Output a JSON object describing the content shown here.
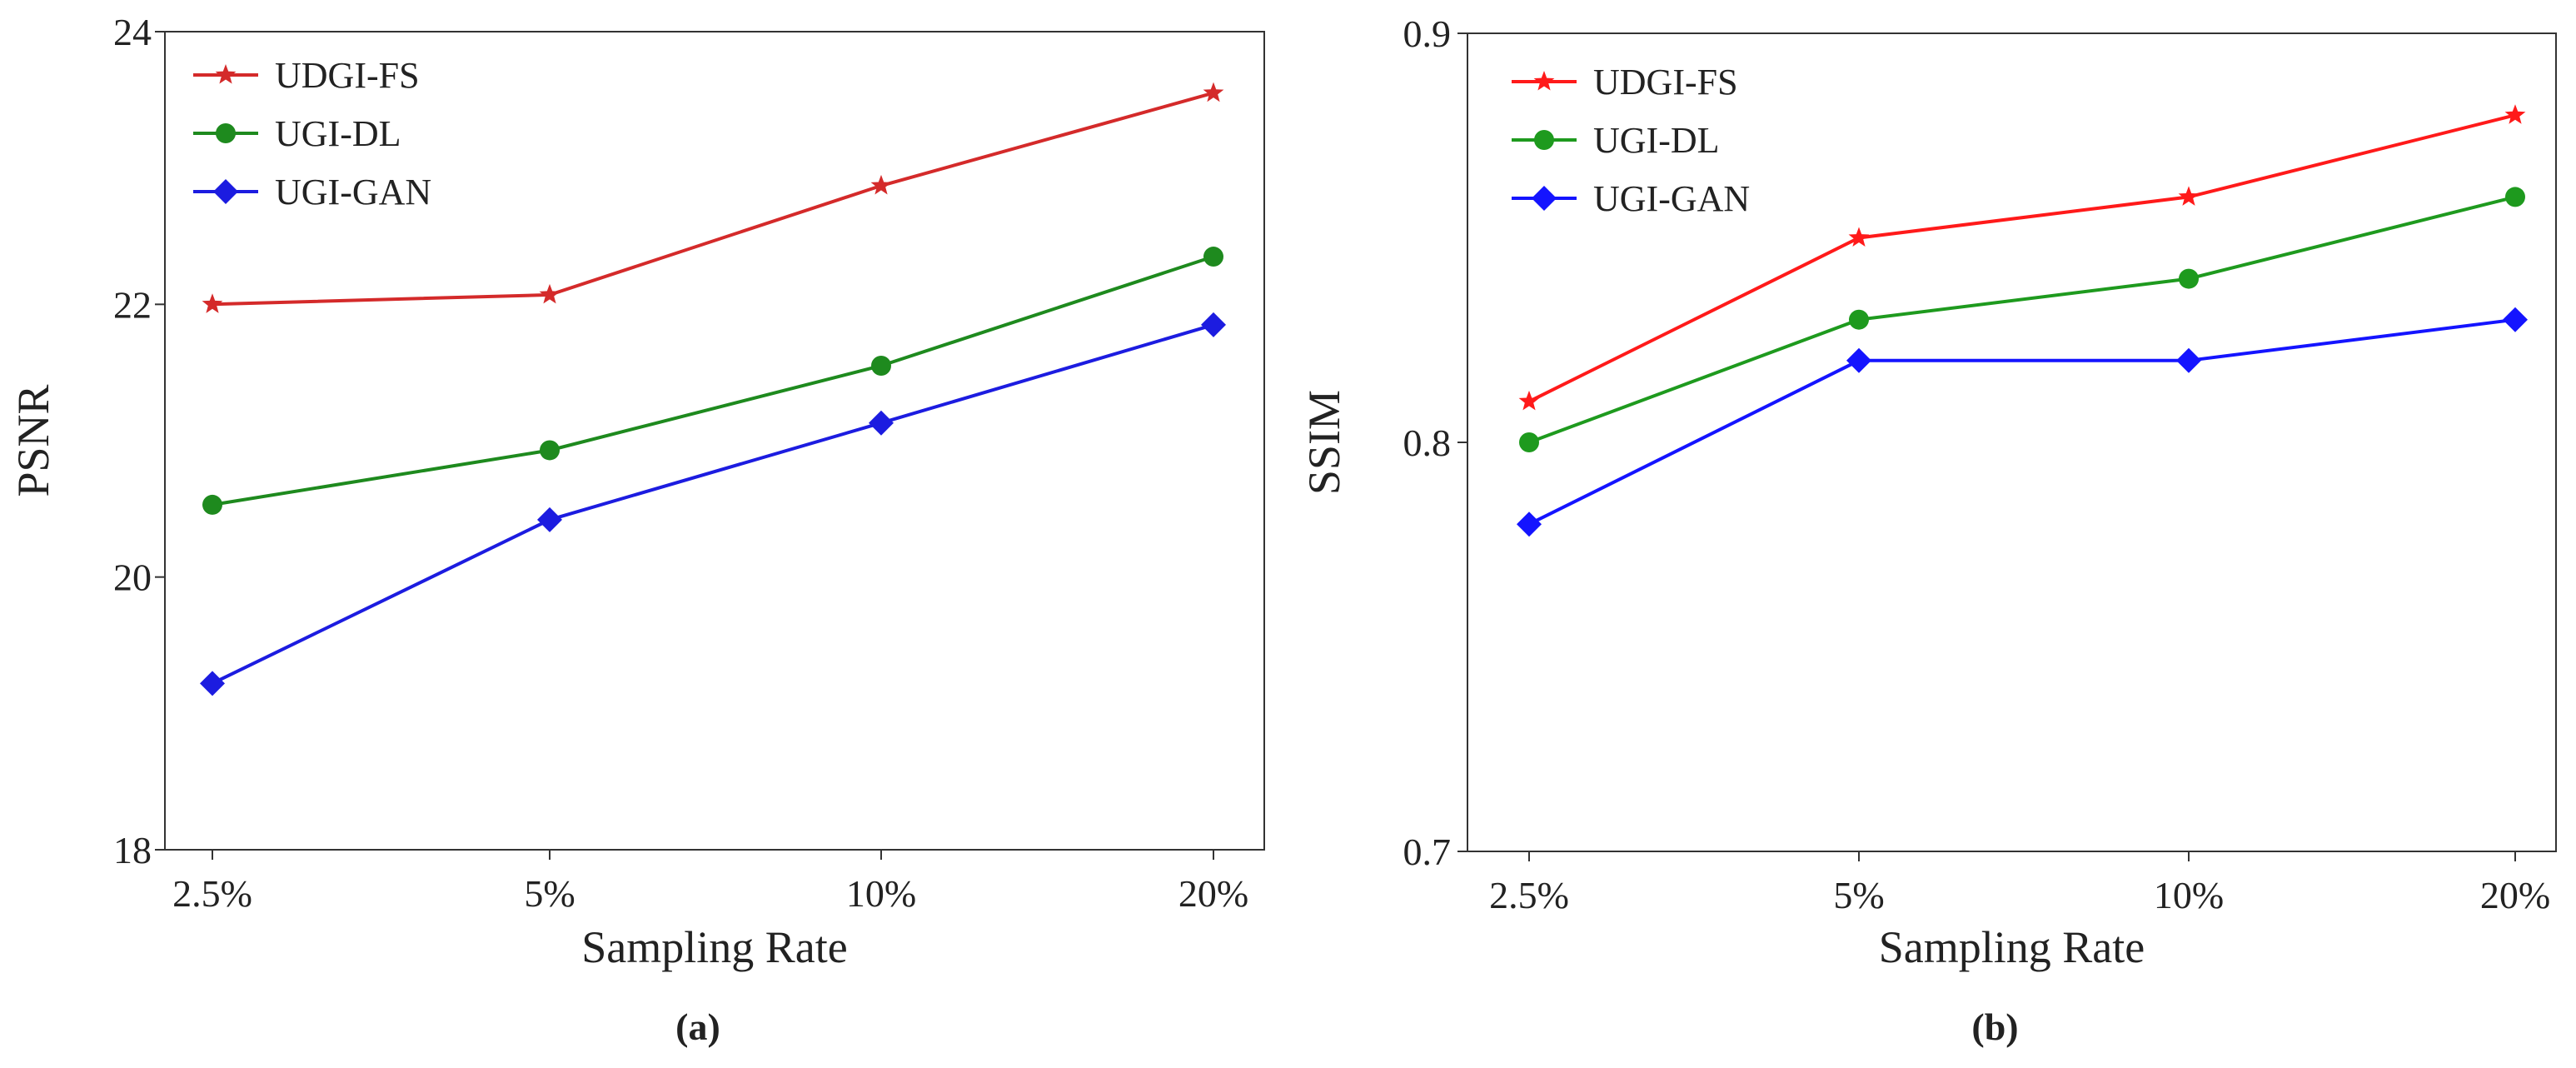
{
  "chart_data": [
    {
      "type": "line",
      "panel_label": "(a)",
      "categories": [
        "2.5%",
        "5%",
        "10%",
        "20%"
      ],
      "xlabel": "Sampling Rate",
      "ylabel": "PSNR",
      "ylim": [
        18,
        24
      ],
      "yticks": [
        18,
        20,
        22,
        24
      ],
      "ytick_labels": [
        "18",
        "20",
        "22",
        "24"
      ],
      "legend_position": "top-left",
      "series": [
        {
          "name": "UDGI-FS",
          "color": "#d42a2a",
          "marker": "star",
          "values": [
            22.0,
            22.07,
            22.87,
            23.55
          ]
        },
        {
          "name": "UGI-DL",
          "color": "#1e8a1e",
          "marker": "circle",
          "values": [
            20.53,
            20.93,
            21.55,
            22.35
          ]
        },
        {
          "name": "UGI-GAN",
          "color": "#1c1ce0",
          "marker": "diamond",
          "values": [
            19.22,
            20.42,
            21.13,
            21.85
          ]
        }
      ]
    },
    {
      "type": "line",
      "panel_label": "(b)",
      "categories": [
        "2.5%",
        "5%",
        "10%",
        "20%"
      ],
      "xlabel": "Sampling Rate",
      "ylabel": "SSIM",
      "ylim": [
        0.7,
        0.9
      ],
      "yticks": [
        0.7,
        0.8,
        0.9
      ],
      "ytick_labels": [
        "0.7",
        "0.8",
        "0.9"
      ],
      "legend_position": "top-left",
      "series": [
        {
          "name": "UDGI-FS",
          "color": "#ff1a1a",
          "marker": "star",
          "values": [
            0.81,
            0.85,
            0.86,
            0.88
          ]
        },
        {
          "name": "UGI-DL",
          "color": "#1e9a1e",
          "marker": "circle",
          "values": [
            0.8,
            0.83,
            0.84,
            0.86
          ]
        },
        {
          "name": "UGI-GAN",
          "color": "#1414ff",
          "marker": "diamond",
          "values": [
            0.78,
            0.82,
            0.82,
            0.83
          ]
        }
      ]
    }
  ]
}
